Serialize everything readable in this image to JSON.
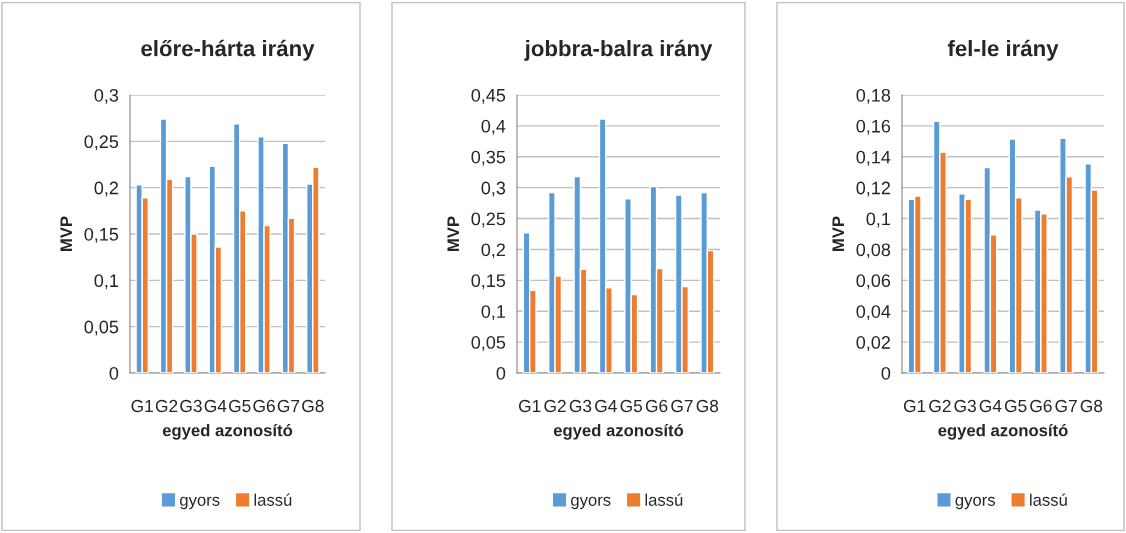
{
  "chart_data": [
    {
      "type": "bar",
      "title": "előre-hárta irány",
      "xlabel": "egyed azonosító",
      "ylabel": "MVP",
      "categories": [
        "G1",
        "G2",
        "G3",
        "G4",
        "G5",
        "G6",
        "G7",
        "G8"
      ],
      "series": [
        {
          "name": "gyors",
          "color": "#5b9bd5",
          "values": [
            0.203,
            0.274,
            0.212,
            0.223,
            0.269,
            0.255,
            0.248,
            0.204
          ]
        },
        {
          "name": "lassú",
          "color": "#ed7d31",
          "values": [
            0.189,
            0.209,
            0.15,
            0.136,
            0.175,
            0.159,
            0.167,
            0.222
          ]
        }
      ],
      "ylim": [
        0,
        0.3
      ],
      "yticks": [
        0,
        {
          "value": 0.05,
          "label": "0,05"
        },
        {
          "value": 0.1,
          "label": "0,1"
        },
        {
          "value": 0.15,
          "label": "0,15"
        },
        {
          "value": 0.2,
          "label": "0,2"
        },
        {
          "value": 0.25,
          "label": "0,25"
        },
        {
          "value": 0.3,
          "label": "0,3"
        }
      ],
      "grid": "y",
      "legend": "bottom"
    },
    {
      "type": "bar",
      "title": "jobbra-balra irány",
      "xlabel": "egyed azonosító",
      "ylabel": "MVP",
      "categories": [
        "G1",
        "G2",
        "G3",
        "G4",
        "G5",
        "G6",
        "G7",
        "G8"
      ],
      "series": [
        {
          "name": "gyors",
          "color": "#5b9bd5",
          "values": [
            0.227,
            0.292,
            0.318,
            0.411,
            0.282,
            0.302,
            0.288,
            0.292
          ]
        },
        {
          "name": "lassú",
          "color": "#ed7d31",
          "values": [
            0.134,
            0.157,
            0.168,
            0.138,
            0.127,
            0.169,
            0.14,
            0.198
          ]
        }
      ],
      "ylim": [
        0,
        0.45
      ],
      "yticks": [
        0,
        {
          "value": 0.05,
          "label": "0,05"
        },
        {
          "value": 0.1,
          "label": "0,1"
        },
        {
          "value": 0.15,
          "label": "0,15"
        },
        {
          "value": 0.2,
          "label": "0,2"
        },
        {
          "value": 0.25,
          "label": "0,25"
        },
        {
          "value": 0.3,
          "label": "0,3"
        },
        {
          "value": 0.35,
          "label": "0,35"
        },
        {
          "value": 0.4,
          "label": "0,4"
        },
        {
          "value": 0.45,
          "label": "0,45"
        }
      ],
      "grid": "y",
      "legend": "bottom"
    },
    {
      "type": "bar",
      "title": "fel-le irány",
      "xlabel": "egyed azonosító",
      "ylabel": "MVP",
      "categories": [
        "G1",
        "G2",
        "G3",
        "G4",
        "G5",
        "G6",
        "G7",
        "G8"
      ],
      "series": [
        {
          "name": "gyors",
          "color": "#5b9bd5",
          "values": [
            0.1125,
            0.163,
            0.116,
            0.133,
            0.1515,
            0.1055,
            0.152,
            0.1355
          ]
        },
        {
          "name": "lassú",
          "color": "#ed7d31",
          "values": [
            0.1145,
            0.143,
            0.1125,
            0.0895,
            0.1135,
            0.103,
            0.127,
            0.1185
          ]
        }
      ],
      "ylim": [
        0,
        0.18
      ],
      "yticks": [
        0,
        {
          "value": 0.02,
          "label": "0,02"
        },
        {
          "value": 0.04,
          "label": "0,04"
        },
        {
          "value": 0.06,
          "label": "0,06"
        },
        {
          "value": 0.08,
          "label": "0,08"
        },
        {
          "value": 0.1,
          "label": "0,1"
        },
        {
          "value": 0.12,
          "label": "0,12"
        },
        {
          "value": 0.14,
          "label": "0,14"
        },
        {
          "value": 0.16,
          "label": "0,16"
        },
        {
          "value": 0.18,
          "label": "0,18"
        }
      ],
      "grid": "y",
      "legend": "bottom"
    }
  ]
}
